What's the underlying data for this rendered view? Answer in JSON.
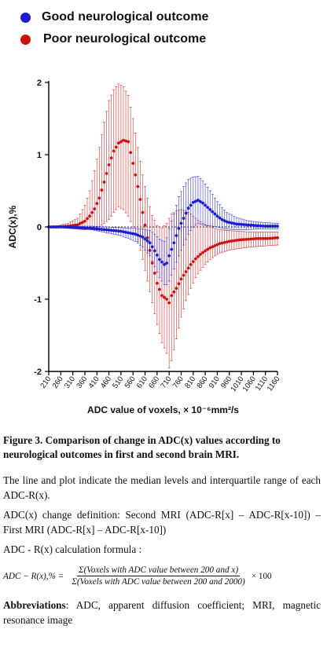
{
  "legend": {
    "good_label": "Good neurological outcome",
    "poor_label": "Poor neurological outcome",
    "good_color": "#1c1cd0",
    "poor_color": "#cc1111"
  },
  "chart_data": {
    "type": "scatter",
    "title": "",
    "xlabel": "ADC value of voxels, × 10⁻⁶mm²/s",
    "ylabel": "ADC(x),%",
    "ylim": [
      -2,
      2
    ],
    "yticks": [
      "2",
      "1",
      "0",
      "-1",
      "-2"
    ],
    "xlim": [
      210,
      1160
    ],
    "xtick_labels": [
      "210",
      "260",
      "310",
      "360",
      "410",
      "460",
      "510",
      "560",
      "610",
      "660",
      "710",
      "760",
      "810",
      "860",
      "910",
      "960",
      "1010",
      "1060",
      "1110",
      "1160"
    ],
    "zero_line": "dashed",
    "series": [
      {
        "name": "Good neurological outcome",
        "color": "#1c1cd0",
        "x": [
          210,
          270,
          330,
          390,
          450,
          510,
          570,
          600,
          630,
          650,
          670,
          690,
          700,
          710,
          730,
          750,
          770,
          790,
          810,
          830,
          850,
          870,
          890,
          910,
          930,
          950,
          990,
          1030,
          1070,
          1110,
          1160
        ],
        "median": [
          0,
          0,
          -0.01,
          -0.02,
          -0.04,
          -0.06,
          -0.1,
          -0.14,
          -0.22,
          -0.33,
          -0.45,
          -0.52,
          -0.5,
          -0.4,
          -0.22,
          -0.02,
          0.12,
          0.26,
          0.34,
          0.37,
          0.33,
          0.27,
          0.21,
          0.15,
          0.1,
          0.07,
          0.04,
          0.03,
          0.02,
          0.01,
          0.01
        ],
        "upper": [
          0.01,
          0.01,
          0.01,
          0.01,
          0.0,
          -0.01,
          -0.02,
          -0.03,
          -0.05,
          -0.1,
          -0.17,
          -0.2,
          -0.15,
          -0.02,
          0.18,
          0.42,
          0.56,
          0.66,
          0.69,
          0.7,
          0.64,
          0.55,
          0.45,
          0.35,
          0.27,
          0.2,
          0.13,
          0.09,
          0.07,
          0.06,
          0.05
        ],
        "lower": [
          -0.01,
          -0.01,
          -0.02,
          -0.04,
          -0.08,
          -0.12,
          -0.2,
          -0.28,
          -0.4,
          -0.55,
          -0.7,
          -0.8,
          -0.8,
          -0.75,
          -0.58,
          -0.4,
          -0.25,
          -0.1,
          0.0,
          0.05,
          0.03,
          0.02,
          0.01,
          0.0,
          -0.02,
          -0.03,
          -0.04,
          -0.04,
          -0.03,
          -0.03,
          -0.03
        ]
      },
      {
        "name": "Poor neurological outcome",
        "color": "#cc1111",
        "x": [
          210,
          250,
          290,
          330,
          360,
          380,
          400,
          420,
          440,
          460,
          480,
          500,
          520,
          540,
          560,
          580,
          600,
          620,
          640,
          660,
          680,
          700,
          710,
          720,
          740,
          760,
          780,
          800,
          820,
          840,
          860,
          880,
          900,
          920,
          960,
          1000,
          1040,
          1080,
          1120,
          1160
        ],
        "median": [
          0,
          0,
          0.01,
          0.03,
          0.08,
          0.15,
          0.25,
          0.4,
          0.62,
          0.86,
          1.05,
          1.16,
          1.2,
          1.18,
          0.88,
          0.56,
          0.2,
          -0.15,
          -0.5,
          -0.78,
          -0.95,
          -1.0,
          -1.05,
          -0.95,
          -0.85,
          -0.72,
          -0.62,
          -0.52,
          -0.44,
          -0.38,
          -0.33,
          -0.29,
          -0.26,
          -0.23,
          -0.2,
          -0.18,
          -0.17,
          -0.16,
          -0.16,
          -0.15
        ],
        "upper": [
          0.01,
          0.02,
          0.05,
          0.12,
          0.3,
          0.5,
          0.78,
          1.1,
          1.45,
          1.75,
          1.9,
          1.98,
          1.94,
          1.82,
          1.5,
          1.1,
          0.72,
          0.4,
          0.16,
          0.02,
          -0.02,
          0.05,
          0.12,
          0.18,
          0.22,
          0.24,
          0.22,
          0.18,
          0.12,
          0.07,
          0.03,
          0.0,
          -0.02,
          -0.04,
          -0.05,
          -0.06,
          -0.07,
          -0.07,
          -0.07,
          -0.07
        ],
        "lower": [
          0.0,
          -0.01,
          -0.02,
          -0.03,
          -0.04,
          -0.03,
          -0.02,
          0.0,
          0.05,
          0.1,
          0.2,
          0.28,
          0.24,
          0.15,
          0.0,
          -0.2,
          -0.45,
          -0.75,
          -1.05,
          -1.35,
          -1.6,
          -1.75,
          -1.95,
          -1.85,
          -1.55,
          -1.25,
          -1.02,
          -0.85,
          -0.7,
          -0.6,
          -0.52,
          -0.45,
          -0.4,
          -0.36,
          -0.32,
          -0.3,
          -0.28,
          -0.27,
          -0.26,
          -0.25
        ]
      }
    ]
  },
  "caption": {
    "figure": "Figure 3. Comparison of change in ADC(x) values according to neurological outcomes in first and second brain MRI.",
    "p1": "The line and plot indicate the median levels and interquartile range of each ADC-R(x).",
    "p2": "ADC(x) change definition: Second MRI (ADC-R[x] – ADC-R[x-10]) – First MRI (ADC-R[x] – ADC-R[x-10])",
    "p3": "ADC - R(x) calculation formula :",
    "formula_lhs": "ADC − R(x),% =",
    "formula_num": "Σ(Voxels with ADC value between 200 and x)",
    "formula_den": "Σ(Voxels with ADC value between 200 and 2000)",
    "formula_times": "× 100",
    "abbr_label": "Abbreviations",
    "abbr_text": ": ADC, apparent diffusion coefficient; MRI, magnetic resonance image"
  }
}
